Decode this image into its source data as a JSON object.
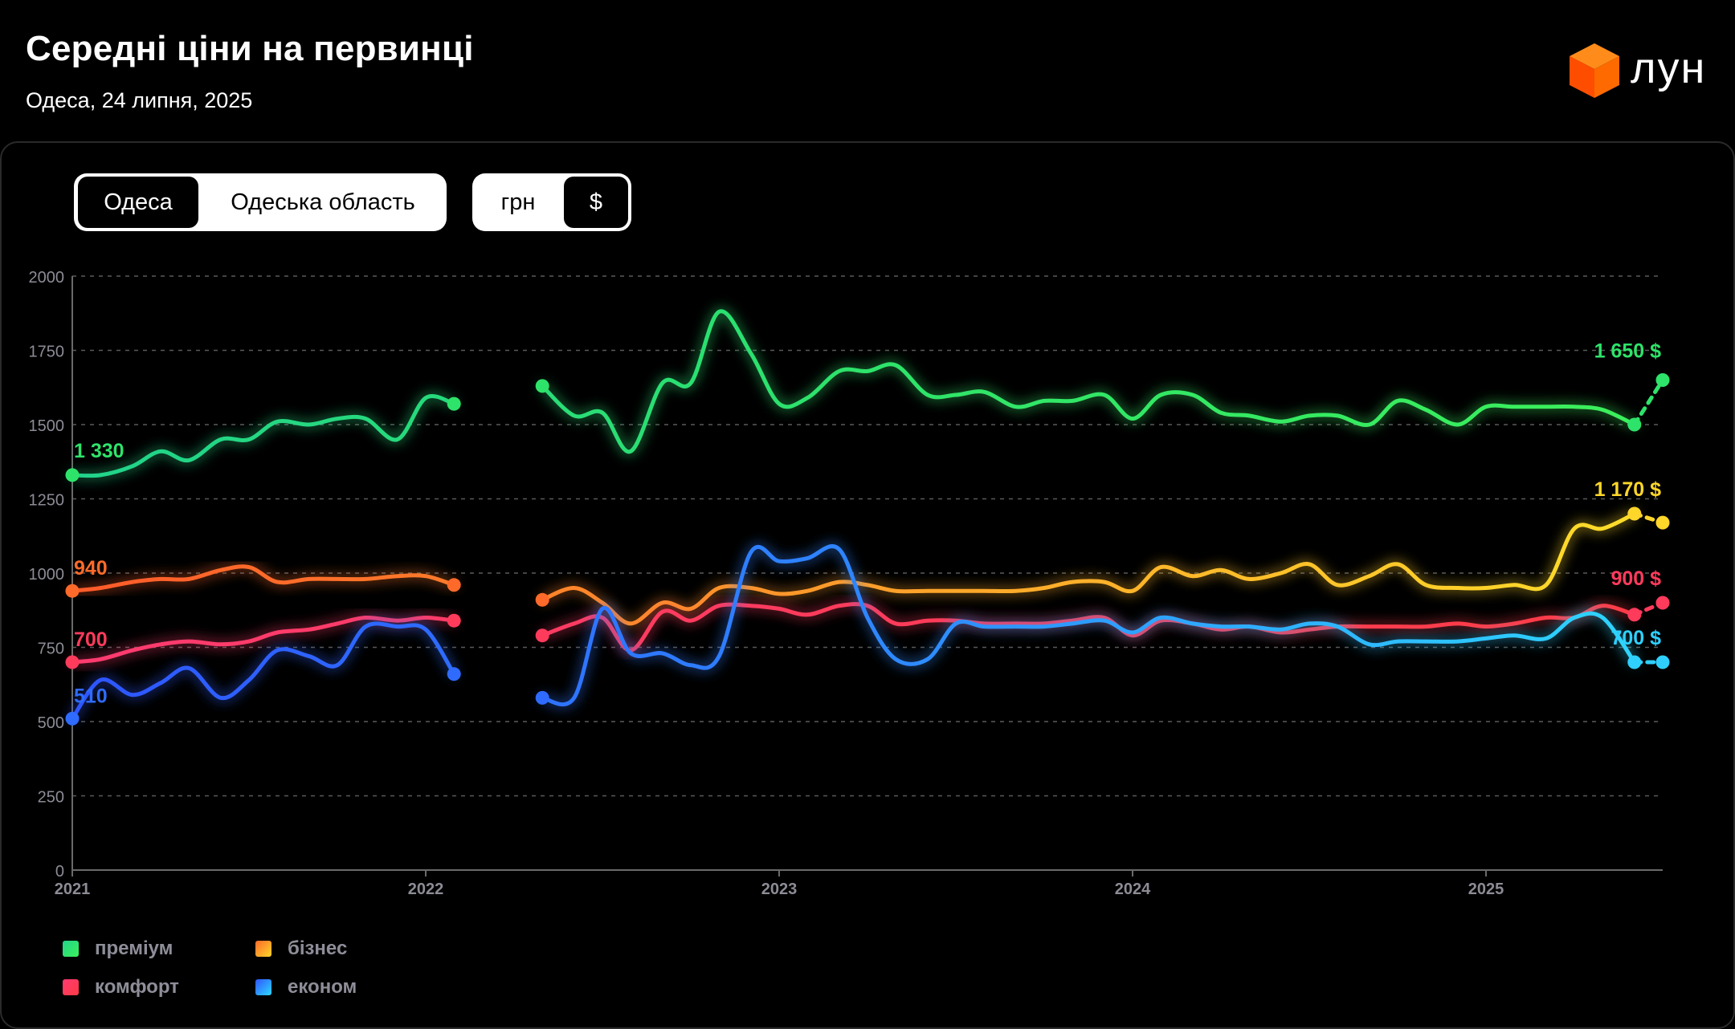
{
  "header": {
    "title": "Середні ціни на первинці",
    "subtitle": "Одеса, 24 липня, 2025",
    "logo_text": "лун"
  },
  "toggles": {
    "region": {
      "options": [
        "Одеса",
        "Одеська область"
      ],
      "selected": "Одеса"
    },
    "currency": {
      "options": [
        "грн",
        "$"
      ],
      "selected": "$"
    }
  },
  "colors": {
    "premium": "#2ee36a",
    "business": "#ff8a2a",
    "comfort": "#ff3b5c",
    "econom": "#2f86ff",
    "grid": "#555555"
  },
  "legend": [
    {
      "key": "premium",
      "label": "преміум",
      "color": "#2ee36a"
    },
    {
      "key": "business",
      "label": "бізнес",
      "color": "#ff9f1c"
    },
    {
      "key": "comfort",
      "label": "комфорт",
      "color": "#ff3b5c"
    },
    {
      "key": "econom",
      "label": "економ",
      "color": "#2f86ff"
    }
  ],
  "chart_data": {
    "type": "line",
    "ylim": [
      0,
      2000
    ],
    "yticks": [
      0,
      250,
      500,
      750,
      1000,
      1250,
      1500,
      1750,
      2000
    ],
    "xlim": [
      2021.0,
      2025.5
    ],
    "xticks": [
      {
        "value": 2021,
        "label": "2021"
      },
      {
        "value": 2022,
        "label": "2022"
      },
      {
        "value": 2023,
        "label": "2023"
      },
      {
        "value": 2024,
        "label": "2024"
      },
      {
        "value": 2025,
        "label": "2025"
      }
    ],
    "grid": true,
    "series": [
      {
        "name": "преміум",
        "key": "premium",
        "color": "#2ee36a",
        "color_end": "#2ee36a",
        "start_label": "1 330",
        "end_label": "1 650 $",
        "segments": [
          [
            [
              2021.0,
              1330
            ],
            [
              2021.08,
              1330
            ],
            [
              2021.17,
              1360
            ],
            [
              2021.25,
              1410
            ],
            [
              2021.33,
              1380
            ],
            [
              2021.42,
              1450
            ],
            [
              2021.5,
              1450
            ],
            [
              2021.58,
              1510
            ],
            [
              2021.67,
              1500
            ],
            [
              2021.75,
              1520
            ],
            [
              2021.83,
              1520
            ],
            [
              2021.92,
              1450
            ],
            [
              2022.0,
              1590
            ],
            [
              2022.08,
              1570
            ]
          ],
          [
            [
              2022.33,
              1630
            ],
            [
              2022.42,
              1530
            ],
            [
              2022.5,
              1540
            ],
            [
              2022.58,
              1410
            ],
            [
              2022.67,
              1640
            ],
            [
              2022.75,
              1640
            ],
            [
              2022.83,
              1880
            ],
            [
              2022.92,
              1740
            ],
            [
              2023.0,
              1570
            ],
            [
              2023.08,
              1590
            ],
            [
              2023.17,
              1680
            ],
            [
              2023.25,
              1680
            ],
            [
              2023.33,
              1700
            ],
            [
              2023.42,
              1600
            ],
            [
              2023.5,
              1600
            ],
            [
              2023.58,
              1610
            ],
            [
              2023.67,
              1560
            ],
            [
              2023.75,
              1580
            ],
            [
              2023.83,
              1580
            ],
            [
              2023.92,
              1600
            ],
            [
              2024.0,
              1520
            ],
            [
              2024.08,
              1600
            ],
            [
              2024.17,
              1600
            ],
            [
              2024.25,
              1540
            ],
            [
              2024.33,
              1530
            ],
            [
              2024.42,
              1510
            ],
            [
              2024.5,
              1530
            ],
            [
              2024.58,
              1530
            ],
            [
              2024.67,
              1500
            ],
            [
              2024.75,
              1580
            ],
            [
              2024.83,
              1550
            ],
            [
              2024.92,
              1500
            ],
            [
              2025.0,
              1560
            ],
            [
              2025.08,
              1560
            ],
            [
              2025.17,
              1560
            ],
            [
              2025.25,
              1560
            ],
            [
              2025.33,
              1550
            ],
            [
              2025.42,
              1500
            ]
          ]
        ],
        "dashed_end": [
          [
            2025.42,
            1500
          ],
          [
            2025.5,
            1650
          ]
        ]
      },
      {
        "name": "бізнес",
        "key": "business",
        "color": "#ff6a2a",
        "color_end": "#ffd62a",
        "start_label": "940",
        "end_label": "1 170 $",
        "segments": [
          [
            [
              2021.0,
              940
            ],
            [
              2021.08,
              950
            ],
            [
              2021.17,
              970
            ],
            [
              2021.25,
              980
            ],
            [
              2021.33,
              980
            ],
            [
              2021.42,
              1010
            ],
            [
              2021.5,
              1020
            ],
            [
              2021.58,
              970
            ],
            [
              2021.67,
              980
            ],
            [
              2021.75,
              980
            ],
            [
              2021.83,
              980
            ],
            [
              2021.92,
              990
            ],
            [
              2022.0,
              990
            ],
            [
              2022.08,
              960
            ]
          ],
          [
            [
              2022.33,
              910
            ],
            [
              2022.42,
              950
            ],
            [
              2022.5,
              900
            ],
            [
              2022.58,
              830
            ],
            [
              2022.67,
              900
            ],
            [
              2022.75,
              880
            ],
            [
              2022.83,
              950
            ],
            [
              2022.92,
              950
            ],
            [
              2023.0,
              930
            ],
            [
              2023.08,
              940
            ],
            [
              2023.17,
              970
            ],
            [
              2023.25,
              960
            ],
            [
              2023.33,
              940
            ],
            [
              2023.42,
              940
            ],
            [
              2023.5,
              940
            ],
            [
              2023.58,
              940
            ],
            [
              2023.67,
              940
            ],
            [
              2023.75,
              950
            ],
            [
              2023.83,
              970
            ],
            [
              2023.92,
              970
            ],
            [
              2024.0,
              940
            ],
            [
              2024.08,
              1020
            ],
            [
              2024.17,
              990
            ],
            [
              2024.25,
              1010
            ],
            [
              2024.33,
              980
            ],
            [
              2024.42,
              1000
            ],
            [
              2024.5,
              1030
            ],
            [
              2024.58,
              960
            ],
            [
              2024.67,
              990
            ],
            [
              2024.75,
              1030
            ],
            [
              2024.83,
              960
            ],
            [
              2024.92,
              950
            ],
            [
              2025.0,
              950
            ],
            [
              2025.08,
              960
            ],
            [
              2025.17,
              960
            ],
            [
              2025.25,
              1150
            ],
            [
              2025.33,
              1150
            ],
            [
              2025.42,
              1200
            ]
          ]
        ],
        "dashed_end": [
          [
            2025.42,
            1200
          ],
          [
            2025.5,
            1170
          ]
        ]
      },
      {
        "name": "комфорт",
        "key": "comfort",
        "color": "#ff3b5c",
        "color_end": "#ff3b5c",
        "start_label": "700",
        "end_label": "900 $",
        "segments": [
          [
            [
              2021.0,
              700
            ],
            [
              2021.08,
              710
            ],
            [
              2021.17,
              740
            ],
            [
              2021.25,
              760
            ],
            [
              2021.33,
              770
            ],
            [
              2021.42,
              760
            ],
            [
              2021.5,
              770
            ],
            [
              2021.58,
              800
            ],
            [
              2021.67,
              810
            ],
            [
              2021.75,
              830
            ],
            [
              2021.83,
              850
            ],
            [
              2021.92,
              840
            ],
            [
              2022.0,
              850
            ],
            [
              2022.08,
              840
            ]
          ],
          [
            [
              2022.33,
              790
            ],
            [
              2022.42,
              830
            ],
            [
              2022.5,
              850
            ],
            [
              2022.58,
              740
            ],
            [
              2022.67,
              870
            ],
            [
              2022.75,
              840
            ],
            [
              2022.83,
              890
            ],
            [
              2022.92,
              890
            ],
            [
              2023.0,
              880
            ],
            [
              2023.08,
              860
            ],
            [
              2023.17,
              890
            ],
            [
              2023.25,
              890
            ],
            [
              2023.33,
              830
            ],
            [
              2023.42,
              840
            ],
            [
              2023.5,
              840
            ],
            [
              2023.58,
              830
            ],
            [
              2023.67,
              830
            ],
            [
              2023.75,
              830
            ],
            [
              2023.83,
              840
            ],
            [
              2023.92,
              850
            ],
            [
              2024.0,
              790
            ],
            [
              2024.08,
              840
            ],
            [
              2024.17,
              830
            ],
            [
              2024.25,
              810
            ],
            [
              2024.33,
              820
            ],
            [
              2024.42,
              800
            ],
            [
              2024.5,
              810
            ],
            [
              2024.58,
              820
            ],
            [
              2024.67,
              820
            ],
            [
              2024.75,
              820
            ],
            [
              2024.83,
              820
            ],
            [
              2024.92,
              830
            ],
            [
              2025.0,
              820
            ],
            [
              2025.08,
              830
            ],
            [
              2025.17,
              850
            ],
            [
              2025.25,
              850
            ],
            [
              2025.33,
              890
            ],
            [
              2025.42,
              860
            ]
          ]
        ],
        "dashed_end": [
          [
            2025.42,
            860
          ],
          [
            2025.5,
            900
          ]
        ]
      },
      {
        "name": "економ",
        "key": "econom",
        "color": "#2f6bff",
        "color_end": "#2fd0ff",
        "start_label": "510",
        "end_label": "700 $",
        "segments": [
          [
            [
              2021.0,
              510
            ],
            [
              2021.08,
              640
            ],
            [
              2021.17,
              590
            ],
            [
              2021.25,
              630
            ],
            [
              2021.33,
              680
            ],
            [
              2021.42,
              580
            ],
            [
              2021.5,
              640
            ],
            [
              2021.58,
              740
            ],
            [
              2021.67,
              720
            ],
            [
              2021.75,
              690
            ],
            [
              2021.83,
              820
            ],
            [
              2021.92,
              820
            ],
            [
              2022.0,
              810
            ],
            [
              2022.08,
              660
            ]
          ],
          [
            [
              2022.33,
              580
            ],
            [
              2022.42,
              580
            ],
            [
              2022.5,
              880
            ],
            [
              2022.58,
              730
            ],
            [
              2022.67,
              730
            ],
            [
              2022.75,
              690
            ],
            [
              2022.83,
              720
            ],
            [
              2022.92,
              1070
            ],
            [
              2023.0,
              1040
            ],
            [
              2023.08,
              1050
            ],
            [
              2023.17,
              1080
            ],
            [
              2023.25,
              850
            ],
            [
              2023.33,
              710
            ],
            [
              2023.42,
              710
            ],
            [
              2023.5,
              830
            ],
            [
              2023.58,
              820
            ],
            [
              2023.67,
              820
            ],
            [
              2023.75,
              820
            ],
            [
              2023.83,
              830
            ],
            [
              2023.92,
              840
            ],
            [
              2024.0,
              800
            ],
            [
              2024.08,
              850
            ],
            [
              2024.17,
              830
            ],
            [
              2024.25,
              820
            ],
            [
              2024.33,
              820
            ],
            [
              2024.42,
              810
            ],
            [
              2024.5,
              830
            ],
            [
              2024.58,
              820
            ],
            [
              2024.67,
              760
            ],
            [
              2024.75,
              770
            ],
            [
              2024.83,
              770
            ],
            [
              2024.92,
              770
            ],
            [
              2025.0,
              780
            ],
            [
              2025.08,
              790
            ],
            [
              2025.17,
              780
            ],
            [
              2025.25,
              850
            ],
            [
              2025.33,
              850
            ],
            [
              2025.42,
              700
            ]
          ]
        ],
        "dashed_end": [
          [
            2025.42,
            700
          ],
          [
            2025.5,
            700
          ]
        ]
      }
    ]
  }
}
